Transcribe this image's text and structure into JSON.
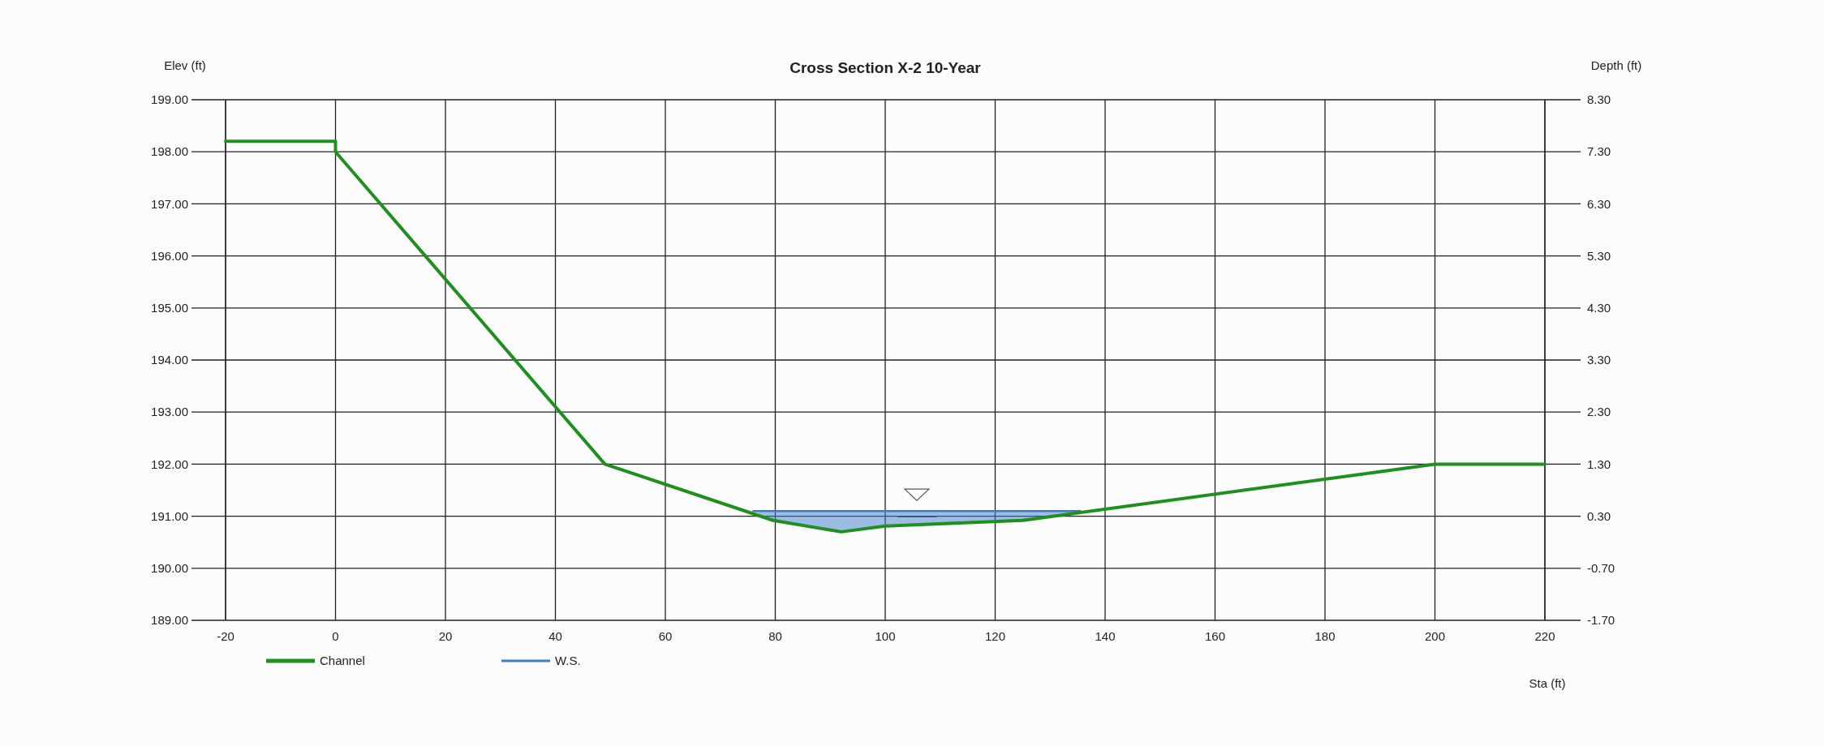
{
  "chart_data": {
    "type": "line",
    "title": "Cross Section X-2 10-Year",
    "xlabel": "Sta (ft)",
    "ylabel": "Elev (ft)",
    "y2label": "Depth (ft)",
    "series": [
      {
        "name": "Channel",
        "color": "#1f8f1f",
        "x": [
          -20,
          0,
          0,
          49,
          79.6,
          92,
          100,
          125,
          200,
          220
        ],
        "values": [
          198.2,
          198.2,
          198.0,
          192.0,
          190.92,
          190.7,
          190.81,
          190.92,
          192.0,
          192.0
        ]
      },
      {
        "name": "W.S.",
        "color": "#3d7cc9",
        "x": [
          76,
          79.6,
          92,
          100,
          125,
          135.5
        ],
        "values": [
          191.1,
          191.1,
          191.1,
          191.1,
          191.1,
          191.1
        ],
        "lower": [
          191.1,
          190.92,
          190.7,
          190.81,
          190.92,
          191.1
        ],
        "upper": [
          191.1,
          191.1,
          191.1,
          191.1,
          191.1,
          191.1
        ]
      }
    ],
    "xlim": [
      -20,
      220
    ],
    "xticks": [
      -20,
      0,
      20,
      40,
      60,
      80,
      100,
      120,
      140,
      160,
      180,
      200,
      220
    ],
    "ylim": [
      189,
      199
    ],
    "yticks": [
      {
        "value": 189,
        "label": "189.00"
      },
      {
        "value": 190,
        "label": "190.00"
      },
      {
        "value": 191,
        "label": "191.00"
      },
      {
        "value": 192,
        "label": "192.00"
      },
      {
        "value": 193,
        "label": "193.00"
      },
      {
        "value": 194,
        "label": "194.00"
      },
      {
        "value": 195,
        "label": "195.00"
      },
      {
        "value": 196,
        "label": "196.00"
      },
      {
        "value": 197,
        "label": "197.00"
      },
      {
        "value": 198,
        "label": "198.00"
      },
      {
        "value": 199,
        "label": "199.00"
      }
    ],
    "y2lim": [
      -1.7,
      8.3
    ],
    "y2ticks": [
      {
        "value": -1.7,
        "label": "-1.70"
      },
      {
        "value": -0.7,
        "label": "-0.70"
      },
      {
        "value": 0.3,
        "label": "0.30"
      },
      {
        "value": 1.3,
        "label": "1.30"
      },
      {
        "value": 2.3,
        "label": "2.30"
      },
      {
        "value": 3.3,
        "label": "3.30"
      },
      {
        "value": 4.3,
        "label": "4.30"
      },
      {
        "value": 5.3,
        "label": "5.30"
      },
      {
        "value": 6.3,
        "label": "6.30"
      },
      {
        "value": 7.3,
        "label": "7.30"
      },
      {
        "value": 8.3,
        "label": "8.30"
      }
    ],
    "grid": true,
    "legend": "bottom left"
  }
}
